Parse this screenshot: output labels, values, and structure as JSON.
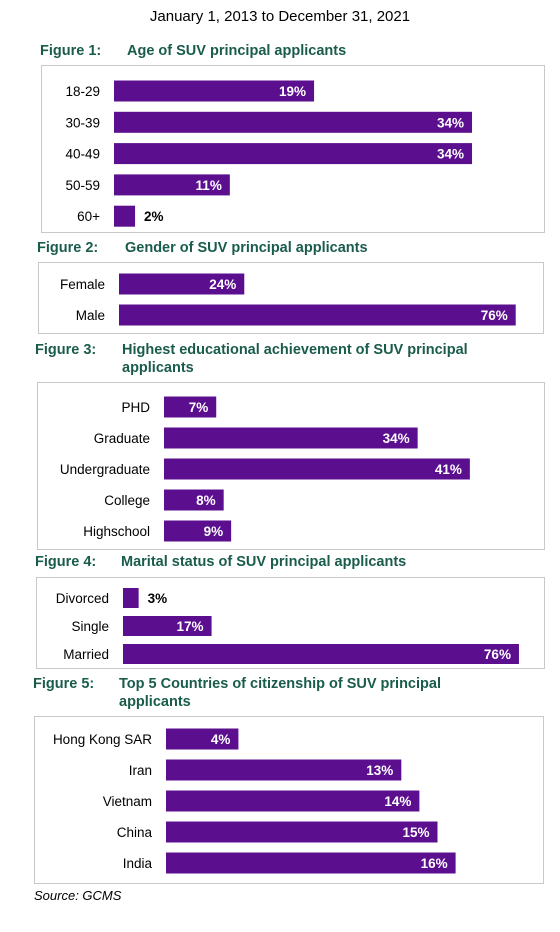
{
  "page": {
    "subtitle": "January 1, 2013 to December 31, 2021",
    "source": "Source: GCMS",
    "bar_color": "#5b0f8f",
    "title_color": "#1a5c4c"
  },
  "chart_data": [
    {
      "type": "bar",
      "orientation": "horizontal",
      "figure_label": "Figure 1:",
      "title": "Age of SUV principal applicants",
      "categories": [
        "18-29",
        "30-39",
        "40-49",
        "50-59",
        "60+"
      ],
      "values": [
        19,
        34,
        34,
        11,
        2
      ],
      "value_labels": [
        "19%",
        "34%",
        "34%",
        "11%",
        "2%"
      ],
      "unit": "%"
    },
    {
      "type": "bar",
      "orientation": "horizontal",
      "figure_label": "Figure 2:",
      "title": "Gender of SUV principal applicants",
      "categories": [
        "Female",
        "Male"
      ],
      "values": [
        24,
        76
      ],
      "value_labels": [
        "24%",
        "76%"
      ],
      "unit": "%"
    },
    {
      "type": "bar",
      "orientation": "horizontal",
      "figure_label": "Figure 3:",
      "title": "Highest educational achievement of SUV principal applicants",
      "title_lines": [
        "Highest educational achievement of SUV principal",
        "applicants"
      ],
      "categories": [
        "PHD",
        "Graduate",
        "Undergraduate",
        "College",
        "Highschool"
      ],
      "values": [
        7,
        34,
        41,
        8,
        9
      ],
      "value_labels": [
        "7%",
        "34%",
        "41%",
        "8%",
        "9%"
      ],
      "unit": "%"
    },
    {
      "type": "bar",
      "orientation": "horizontal",
      "figure_label": "Figure 4:",
      "title": "Marital status of SUV principal applicants",
      "categories": [
        "Divorced",
        "Single",
        "Married"
      ],
      "values": [
        3,
        17,
        76
      ],
      "value_labels": [
        "3%",
        "17%",
        "76%"
      ],
      "unit": "%"
    },
    {
      "type": "bar",
      "orientation": "horizontal",
      "figure_label": "Figure 5:",
      "title": "Top 5 Countries of citizenship of SUV principal applicants",
      "title_lines": [
        "Top 5 Countries of citizenship of SUV principal",
        "applicants"
      ],
      "categories": [
        "Hong Kong SAR",
        "Iran",
        "Vietnam",
        "China",
        "India"
      ],
      "values": [
        4,
        13,
        14,
        15,
        16
      ],
      "value_labels": [
        "4%",
        "13%",
        "14%",
        "15%",
        "16%"
      ],
      "unit": "%"
    }
  ]
}
